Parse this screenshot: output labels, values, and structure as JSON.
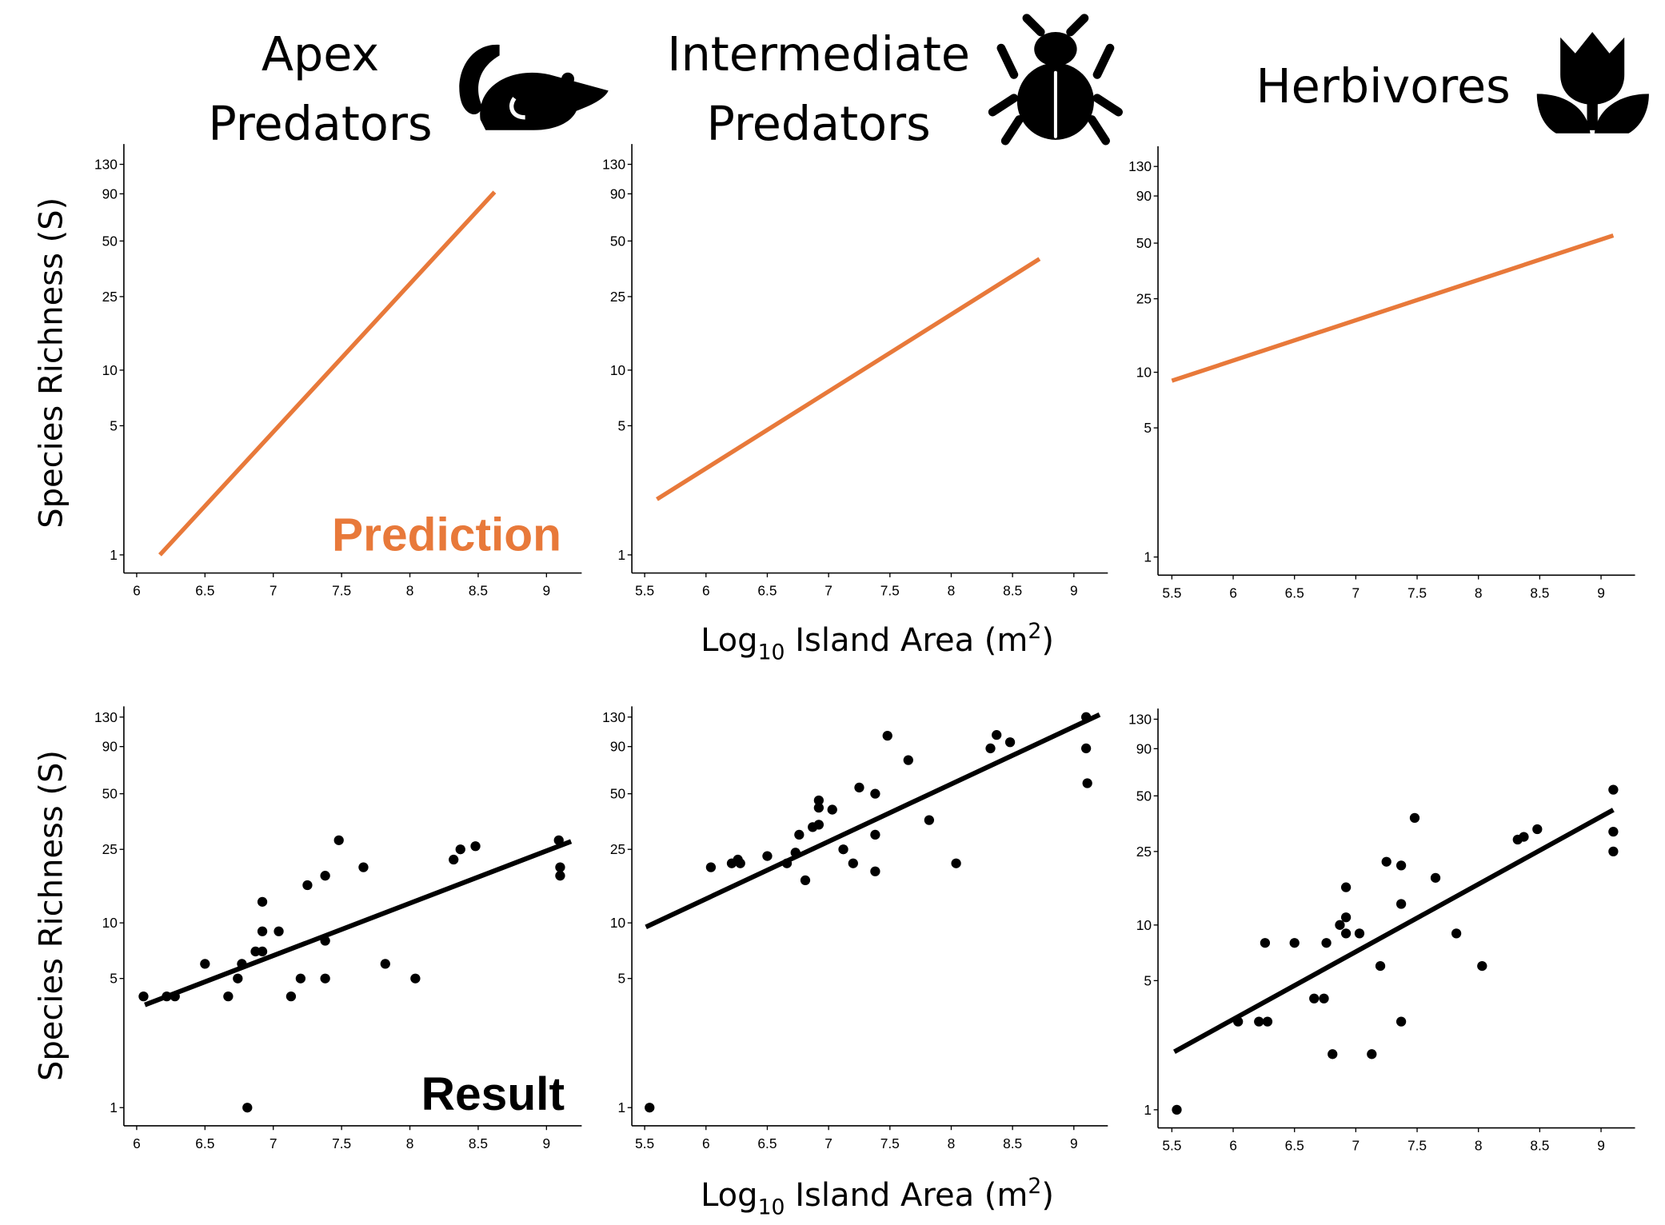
{
  "chart_data": [
    {
      "type": "line",
      "row": "prediction",
      "title": "Apex Predators",
      "icon": "rat-icon",
      "xlabel": "",
      "ylabel": "Species Richness (S)",
      "y_scale": "log",
      "xlim": [
        5.9,
        9.25
      ],
      "ylim": [
        0.85,
        145
      ],
      "xticks": [
        6,
        6.5,
        7,
        7.5,
        8,
        8.5,
        9
      ],
      "yticks": [
        1,
        5,
        10,
        25,
        50,
        90,
        130
      ],
      "color": "#E8793A",
      "line": [
        [
          6.17,
          1
        ],
        [
          8.62,
          92
        ]
      ],
      "annotation": "Prediction",
      "points": []
    },
    {
      "type": "line",
      "row": "prediction",
      "title": "Intermediate Predators",
      "icon": "beetle-icon",
      "xlabel": "",
      "ylabel": "",
      "y_scale": "log",
      "xlim": [
        5.45,
        9.25
      ],
      "ylim": [
        0.85,
        145
      ],
      "xticks": [
        5.5,
        6,
        6.5,
        7,
        7.5,
        8,
        8.5,
        9
      ],
      "yticks": [
        1,
        5,
        10,
        25,
        50,
        90,
        130
      ],
      "color": "#E8793A",
      "line": [
        [
          5.6,
          2
        ],
        [
          8.72,
          40
        ]
      ],
      "points": []
    },
    {
      "type": "line",
      "row": "prediction",
      "title": "Herbivores",
      "icon": "tulip-icon",
      "xlabel": "",
      "ylabel": "",
      "y_scale": "log",
      "xlim": [
        5.45,
        9.25
      ],
      "ylim": [
        0.85,
        145
      ],
      "xticks": [
        5.5,
        6,
        6.5,
        7,
        7.5,
        8,
        8.5,
        9
      ],
      "yticks": [
        1,
        5,
        10,
        25,
        50,
        90,
        130
      ],
      "color": "#E8793A",
      "line": [
        [
          5.5,
          9
        ],
        [
          9.1,
          55
        ]
      ],
      "points": []
    },
    {
      "type": "scatter",
      "row": "result",
      "xlabel": "",
      "ylabel": "Species Richness (S)",
      "y_scale": "log",
      "xlim": [
        5.9,
        9.25
      ],
      "ylim": [
        0.85,
        145
      ],
      "xticks": [
        6,
        6.5,
        7,
        7.5,
        8,
        8.5,
        9
      ],
      "yticks": [
        1,
        5,
        10,
        25,
        50,
        90,
        130
      ],
      "color": "#000000",
      "annotation": "Result",
      "line": [
        [
          6.06,
          3.6
        ],
        [
          9.18,
          27.6
        ]
      ],
      "points": [
        [
          6.05,
          4
        ],
        [
          6.22,
          4
        ],
        [
          6.28,
          4
        ],
        [
          6.5,
          6
        ],
        [
          6.67,
          4
        ],
        [
          6.74,
          5
        ],
        [
          6.77,
          6
        ],
        [
          6.81,
          1
        ],
        [
          6.87,
          7
        ],
        [
          6.92,
          7
        ],
        [
          6.92,
          9
        ],
        [
          6.92,
          13
        ],
        [
          7.04,
          9
        ],
        [
          7.13,
          4
        ],
        [
          7.2,
          5
        ],
        [
          7.25,
          16
        ],
        [
          7.38,
          18
        ],
        [
          7.38,
          8
        ],
        [
          7.38,
          5
        ],
        [
          7.48,
          28
        ],
        [
          7.66,
          20
        ],
        [
          7.82,
          6
        ],
        [
          8.04,
          5
        ],
        [
          8.32,
          22
        ],
        [
          8.37,
          25
        ],
        [
          8.48,
          26
        ],
        [
          9.09,
          28
        ],
        [
          9.1,
          20
        ],
        [
          9.1,
          18
        ]
      ]
    },
    {
      "type": "scatter",
      "row": "result",
      "xlabel": "Log10 Island Area (m2)",
      "ylabel": "",
      "y_scale": "log",
      "xlim": [
        5.45,
        9.25
      ],
      "ylim": [
        0.85,
        145
      ],
      "xticks": [
        5.5,
        6,
        6.5,
        7,
        7.5,
        8,
        8.5,
        9
      ],
      "yticks": [
        1,
        5,
        10,
        25,
        50,
        90,
        130
      ],
      "color": "#000000",
      "line": [
        [
          5.51,
          9.5
        ],
        [
          9.21,
          134
        ]
      ],
      "points": [
        [
          5.54,
          1
        ],
        [
          6.04,
          20
        ],
        [
          6.21,
          21
        ],
        [
          6.26,
          22
        ],
        [
          6.28,
          21
        ],
        [
          6.5,
          23
        ],
        [
          6.66,
          21
        ],
        [
          6.73,
          24
        ],
        [
          6.76,
          30
        ],
        [
          6.81,
          17
        ],
        [
          6.87,
          33
        ],
        [
          6.92,
          34
        ],
        [
          6.92,
          42
        ],
        [
          6.92,
          46
        ],
        [
          7.03,
          41
        ],
        [
          7.12,
          25
        ],
        [
          7.2,
          21
        ],
        [
          7.25,
          54
        ],
        [
          7.38,
          50
        ],
        [
          7.38,
          30
        ],
        [
          7.38,
          19
        ],
        [
          7.48,
          103
        ],
        [
          7.65,
          76
        ],
        [
          7.82,
          36
        ],
        [
          8.04,
          21
        ],
        [
          8.32,
          88
        ],
        [
          8.37,
          104
        ],
        [
          8.48,
          95
        ],
        [
          9.1,
          130
        ],
        [
          9.1,
          88
        ],
        [
          9.11,
          57
        ]
      ]
    },
    {
      "type": "scatter",
      "row": "result",
      "xlabel": "",
      "ylabel": "",
      "y_scale": "log",
      "xlim": [
        5.45,
        9.25
      ],
      "ylim": [
        0.85,
        145
      ],
      "xticks": [
        5.5,
        6,
        6.5,
        7,
        7.5,
        8,
        8.5,
        9
      ],
      "yticks": [
        1,
        5,
        10,
        25,
        50,
        90,
        130
      ],
      "color": "#000000",
      "line": [
        [
          5.52,
          2.06
        ],
        [
          9.1,
          42
        ]
      ],
      "points": [
        [
          5.54,
          1
        ],
        [
          6.04,
          3
        ],
        [
          6.21,
          3
        ],
        [
          6.28,
          3
        ],
        [
          6.26,
          8
        ],
        [
          6.5,
          8
        ],
        [
          6.66,
          4
        ],
        [
          6.74,
          4
        ],
        [
          6.76,
          8
        ],
        [
          6.81,
          2
        ],
        [
          6.87,
          10
        ],
        [
          6.92,
          11
        ],
        [
          6.92,
          9
        ],
        [
          6.92,
          16
        ],
        [
          7.03,
          9
        ],
        [
          7.13,
          2
        ],
        [
          7.2,
          6
        ],
        [
          7.25,
          22
        ],
        [
          7.37,
          21
        ],
        [
          7.37,
          13
        ],
        [
          7.37,
          3
        ],
        [
          7.48,
          38
        ],
        [
          7.65,
          18
        ],
        [
          7.82,
          9
        ],
        [
          8.03,
          6
        ],
        [
          8.32,
          29
        ],
        [
          8.37,
          30
        ],
        [
          8.48,
          33
        ],
        [
          9.1,
          54
        ],
        [
          9.1,
          32
        ],
        [
          9.1,
          25
        ]
      ]
    }
  ],
  "titles": {
    "apex_line1": "Apex",
    "apex_line2": "Predators",
    "inter_line1": "Intermediate",
    "inter_line2": "Predators",
    "herb": "Herbivores"
  },
  "labels": {
    "ylabel": "Species Richness (S)",
    "xlabel_main": "Log",
    "xlabel_sub": "10",
    "xlabel_rest": " Island Area (m",
    "xlabel_sup": "2",
    "xlabel_close": ")",
    "prediction": "Prediction",
    "result": "Result"
  },
  "colors": {
    "prediction": "#E8793A",
    "result": "#000000"
  }
}
